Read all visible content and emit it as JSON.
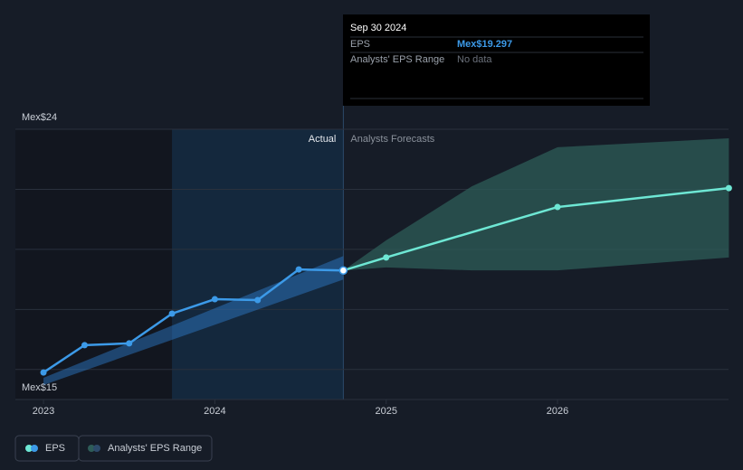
{
  "chart_data": {
    "type": "line",
    "xlim": [
      2022.836,
      2026.998
    ],
    "xticks": [
      2023,
      2024,
      2025,
      2026
    ],
    "ylim": [
      15,
      24
    ],
    "yticks": [
      {
        "value": 15,
        "label": "Mex$15"
      },
      {
        "value": 24,
        "label": "Mex$24"
      }
    ],
    "ygrid": [
      16,
      18,
      20,
      22
    ],
    "actual_label": "Actual",
    "forecast_label": "Analysts Forecasts",
    "series": [
      {
        "name": "EPS",
        "color": "#3c9ae8",
        "x": [
          2023.0,
          2023.24,
          2023.5,
          2023.75,
          2024.0,
          2024.25,
          2024.49,
          2024.75
        ],
        "values": [
          15.9,
          16.81,
          16.87,
          17.86,
          18.34,
          18.31,
          19.33,
          19.297
        ]
      }
    ],
    "forecast": {
      "color": "#6ee7d4",
      "x": [
        2024.75,
        2025.0,
        2026.0,
        2027.0
      ],
      "values": [
        19.297,
        19.73,
        21.41,
        22.04
      ]
    },
    "range": {
      "name": "Analysts' EPS Range",
      "color": "#2e5c58",
      "x": [
        2024.75,
        2025.0,
        2025.5,
        2026.0,
        2027.0
      ],
      "high": [
        19.297,
        20.3,
        22.1,
        23.4,
        23.7
      ],
      "low": [
        19.297,
        19.4,
        19.3,
        19.3,
        19.73
      ]
    },
    "tooltip": {
      "date": "Sep 30 2024",
      "rows": [
        {
          "label": "EPS",
          "value": "Mex$19.297"
        },
        {
          "label": "Analysts' EPS Range",
          "value": "No data"
        }
      ]
    }
  }
}
